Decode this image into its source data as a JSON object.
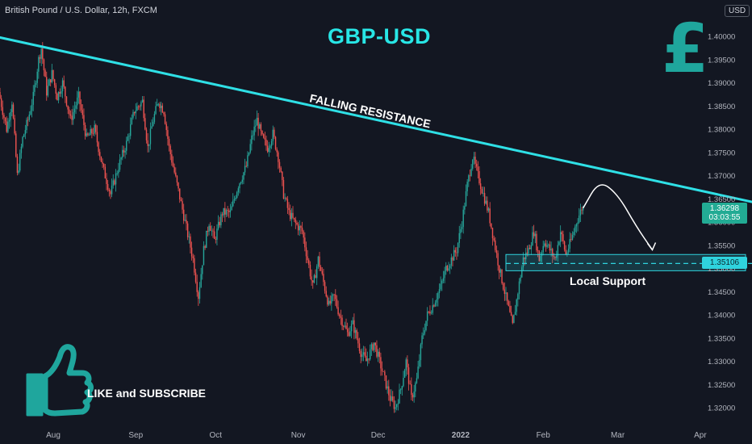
{
  "header": {
    "symbol": "British Pound / U.S. Dollar, 12h, FXCM",
    "currency": "USD"
  },
  "annotations": {
    "main_title": "GBP-USD",
    "falling_resistance": "FALLING RESISTANCE",
    "local_support": "Local Support",
    "cta": "LIKE and SUBSCRIBE",
    "pound_symbol": "£"
  },
  "price_tags": {
    "current_price": "1.36298",
    "countdown": "03:03:55",
    "support_level": "1.35106"
  },
  "colors": {
    "background": "#131722",
    "bull": "#26a69a",
    "bear": "#ef5350",
    "resistance_line": "#2fe0e6",
    "support_zone": "#2fd3de",
    "title": "#28e6e6",
    "logo": "#1fa69d"
  },
  "icons": {
    "thumbs_up": "thumbs-up-icon",
    "pound": "pound-icon"
  },
  "chart_data": {
    "type": "candlestick",
    "title": "GBP-USD",
    "interval": "12h",
    "x_tick_labels": [
      "Aug",
      "Sep",
      "Oct",
      "Nov",
      "Dec",
      "2022",
      "Feb",
      "Mar",
      "Apr"
    ],
    "x_ticks_day": [
      0,
      31,
      61,
      92,
      122,
      153,
      184,
      212,
      243
    ],
    "y_tick_labels": [
      "1.32000",
      "1.32500",
      "1.33000",
      "1.33500",
      "1.34000",
      "1.34500",
      "1.35000",
      "1.35500",
      "1.36000",
      "1.36500",
      "1.37000",
      "1.37500",
      "1.38000",
      "1.38500",
      "1.39000",
      "1.39500",
      "1.40000"
    ],
    "ylim": [
      1.3165,
      1.4055
    ],
    "grid": false,
    "price_anchors": [
      {
        "day": -20,
        "price": 1.388
      },
      {
        "day": -17,
        "price": 1.38
      },
      {
        "day": -15,
        "price": 1.386
      },
      {
        "day": -13,
        "price": 1.37
      },
      {
        "day": -11,
        "price": 1.378
      },
      {
        "day": -9,
        "price": 1.382
      },
      {
        "day": -7,
        "price": 1.387
      },
      {
        "day": -5,
        "price": 1.395
      },
      {
        "day": -4,
        "price": 1.3975
      },
      {
        "day": -2,
        "price": 1.388
      },
      {
        "day": 0,
        "price": 1.392
      },
      {
        "day": 2,
        "price": 1.387
      },
      {
        "day": 4,
        "price": 1.39
      },
      {
        "day": 7,
        "price": 1.382
      },
      {
        "day": 10,
        "price": 1.387
      },
      {
        "day": 13,
        "price": 1.378
      },
      {
        "day": 16,
        "price": 1.38
      },
      {
        "day": 19,
        "price": 1.372
      },
      {
        "day": 22,
        "price": 1.366
      },
      {
        "day": 25,
        "price": 1.372
      },
      {
        "day": 28,
        "price": 1.377
      },
      {
        "day": 31,
        "price": 1.384
      },
      {
        "day": 34,
        "price": 1.386
      },
      {
        "day": 36,
        "price": 1.376
      },
      {
        "day": 38,
        "price": 1.382
      },
      {
        "day": 40,
        "price": 1.386
      },
      {
        "day": 42,
        "price": 1.384
      },
      {
        "day": 44,
        "price": 1.376
      },
      {
        "day": 47,
        "price": 1.368
      },
      {
        "day": 50,
        "price": 1.36
      },
      {
        "day": 53,
        "price": 1.352
      },
      {
        "day": 55,
        "price": 1.344
      },
      {
        "day": 57,
        "price": 1.354
      },
      {
        "day": 59,
        "price": 1.36
      },
      {
        "day": 61,
        "price": 1.356
      },
      {
        "day": 64,
        "price": 1.362
      },
      {
        "day": 67,
        "price": 1.362
      },
      {
        "day": 70,
        "price": 1.368
      },
      {
        "day": 73,
        "price": 1.372
      },
      {
        "day": 75,
        "price": 1.378
      },
      {
        "day": 77,
        "price": 1.382
      },
      {
        "day": 79,
        "price": 1.378
      },
      {
        "day": 81,
        "price": 1.376
      },
      {
        "day": 83,
        "price": 1.379
      },
      {
        "day": 85,
        "price": 1.374
      },
      {
        "day": 87,
        "price": 1.366
      },
      {
        "day": 89,
        "price": 1.362
      },
      {
        "day": 91,
        "price": 1.36
      },
      {
        "day": 94,
        "price": 1.358
      },
      {
        "day": 96,
        "price": 1.352
      },
      {
        "day": 98,
        "price": 1.346
      },
      {
        "day": 100,
        "price": 1.352
      },
      {
        "day": 102,
        "price": 1.347
      },
      {
        "day": 104,
        "price": 1.342
      },
      {
        "day": 106,
        "price": 1.344
      },
      {
        "day": 108,
        "price": 1.34
      },
      {
        "day": 111,
        "price": 1.336
      },
      {
        "day": 113,
        "price": 1.338
      },
      {
        "day": 116,
        "price": 1.332
      },
      {
        "day": 118,
        "price": 1.33
      },
      {
        "day": 121,
        "price": 1.334
      },
      {
        "day": 124,
        "price": 1.328
      },
      {
        "day": 127,
        "price": 1.322
      },
      {
        "day": 129,
        "price": 1.32
      },
      {
        "day": 131,
        "price": 1.324
      },
      {
        "day": 133,
        "price": 1.33
      },
      {
        "day": 135,
        "price": 1.322
      },
      {
        "day": 137,
        "price": 1.326
      },
      {
        "day": 139,
        "price": 1.335
      },
      {
        "day": 141,
        "price": 1.34
      },
      {
        "day": 143,
        "price": 1.342
      },
      {
        "day": 146,
        "price": 1.346
      },
      {
        "day": 148,
        "price": 1.35
      },
      {
        "day": 150,
        "price": 1.352
      },
      {
        "day": 152,
        "price": 1.354
      },
      {
        "day": 154,
        "price": 1.36
      },
      {
        "day": 156,
        "price": 1.368
      },
      {
        "day": 158,
        "price": 1.374
      },
      {
        "day": 160,
        "price": 1.37
      },
      {
        "day": 162,
        "price": 1.366
      },
      {
        "day": 164,
        "price": 1.362
      },
      {
        "day": 166,
        "price": 1.356
      },
      {
        "day": 168,
        "price": 1.35
      },
      {
        "day": 170,
        "price": 1.345
      },
      {
        "day": 172,
        "price": 1.34
      },
      {
        "day": 173,
        "price": 1.3375
      },
      {
        "day": 175,
        "price": 1.345
      },
      {
        "day": 177,
        "price": 1.352
      },
      {
        "day": 179,
        "price": 1.354
      },
      {
        "day": 181,
        "price": 1.358
      },
      {
        "day": 183,
        "price": 1.352
      },
      {
        "day": 185,
        "price": 1.356
      },
      {
        "day": 187,
        "price": 1.354
      },
      {
        "day": 189,
        "price": 1.352
      },
      {
        "day": 191,
        "price": 1.358
      },
      {
        "day": 193,
        "price": 1.353
      },
      {
        "day": 195,
        "price": 1.356
      },
      {
        "day": 197,
        "price": 1.36
      },
      {
        "day": 199,
        "price": 1.363
      }
    ],
    "resistance_line": [
      {
        "day": -30,
        "price": 1.401
      },
      {
        "day": 265,
        "price": 1.364
      }
    ],
    "support_zone": {
      "day_start": 170,
      "day_end": 260,
      "price_low": 1.3495,
      "price_high": 1.353
    },
    "support_level": 1.35106,
    "projection": [
      {
        "day": 199,
        "price": 1.363
      },
      {
        "day": 205,
        "price": 1.369
      },
      {
        "day": 212,
        "price": 1.366
      },
      {
        "day": 219,
        "price": 1.359
      },
      {
        "day": 225,
        "price": 1.354
      }
    ],
    "current_price": 1.36298
  }
}
